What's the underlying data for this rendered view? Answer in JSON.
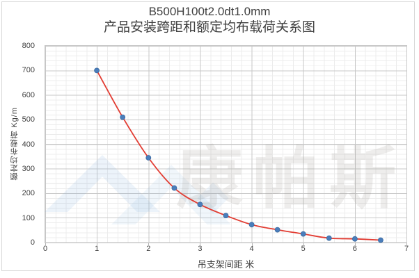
{
  "title": {
    "line1": "B500H100t2.0dt1.0mm",
    "line2": "产品安装跨距和额定均布载荷关系图"
  },
  "chart_data": {
    "type": "scatter",
    "x": [
      1,
      1.5,
      2,
      2.5,
      3,
      3.5,
      4,
      4.5,
      5,
      5.5,
      6,
      6.5
    ],
    "y": [
      700,
      510,
      345,
      222,
      155,
      110,
      73,
      52,
      35,
      18,
      15,
      10
    ],
    "fit_curve": "smooth line through all points",
    "xlabel": "吊支架间距  米",
    "ylabel": "额定均布载荷 Kg/m",
    "xlim": [
      0,
      7
    ],
    "ylim": [
      0,
      800
    ],
    "x_ticks": [
      0,
      1,
      2,
      3,
      4,
      5,
      6,
      7
    ],
    "y_ticks": [
      0,
      100,
      200,
      300,
      400,
      500,
      600,
      700,
      800
    ],
    "x_minor_step": 0.2,
    "y_minor_step": 20,
    "grid": true,
    "legend": "none",
    "marker_color": "#4a7ebb",
    "marker_edge_color": "#3a68a0",
    "curve_color": "#e23c32",
    "major_grid_color": "#c7c7c7",
    "minor_grid_color": "#ececec"
  },
  "watermark": {
    "text": "康帕斯",
    "logo": "mountain-chevrons-and-diamond",
    "logo_color": "#cfe2f3"
  }
}
